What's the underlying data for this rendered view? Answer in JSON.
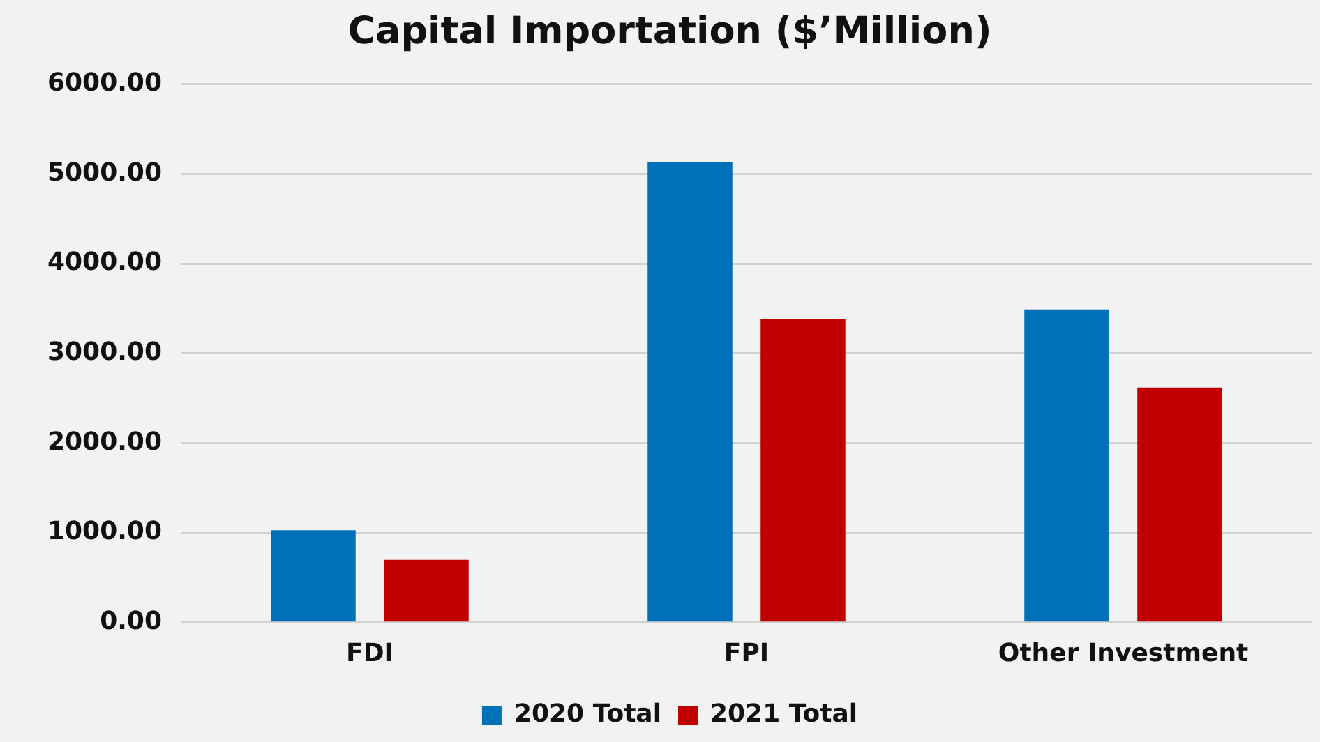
{
  "chart_data": {
    "type": "bar",
    "title": "Capital Importation ($’Million)",
    "categories": [
      "FDI",
      "FPI",
      "Other Investment"
    ],
    "series": [
      {
        "name": "2020 Total",
        "color": "#0070b8",
        "values": [
          1030,
          5130,
          3490
        ]
      },
      {
        "name": "2021 Total",
        "color": "#c00000",
        "values": [
          700,
          3380,
          2620
        ]
      }
    ],
    "ylim": [
      0,
      6000
    ],
    "yticks": [
      {
        "value": 0,
        "label": "0.00"
      },
      {
        "value": 1000,
        "label": "1000.00"
      },
      {
        "value": 2000,
        "label": "2000.00"
      },
      {
        "value": 3000,
        "label": "3000.00"
      },
      {
        "value": 4000,
        "label": "4000.00"
      },
      {
        "value": 5000,
        "label": "5000.00"
      },
      {
        "value": 6000,
        "label": "6000.00"
      }
    ],
    "grid": "y",
    "legend": "bottom"
  }
}
